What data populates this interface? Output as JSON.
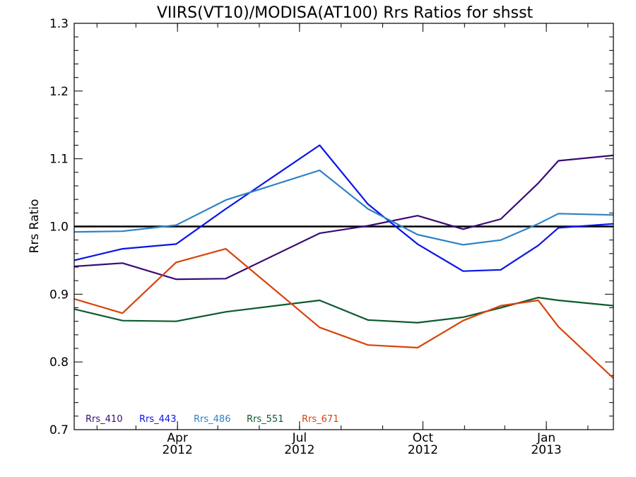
{
  "chart_data": {
    "type": "line",
    "title": "VIIRS(VT10)/MODISA(AT100)  Rrs Ratios for shsst",
    "xlabel": "",
    "ylabel": "Rrs Ratio",
    "xlim": [
      "2012-01-15",
      "2013-02-20"
    ],
    "ylim": [
      0.7,
      1.3
    ],
    "yticks": [
      "0.7",
      "0.8",
      "0.9",
      "1.0",
      "1.1",
      "1.2",
      "1.3"
    ],
    "xticks": [
      {
        "date": "2012-04-01",
        "month": "Apr",
        "year": "2012"
      },
      {
        "date": "2012-07-01",
        "month": "Jul",
        "year": "2012"
      },
      {
        "date": "2012-10-01",
        "month": "Oct",
        "year": "2012"
      },
      {
        "date": "2013-01-01",
        "month": "Jan",
        "year": "2013"
      }
    ],
    "reference_line": 1.0,
    "x": [
      "2012-01-15",
      "2012-02-20",
      "2012-03-31",
      "2012-05-07",
      "2012-07-16",
      "2012-08-21",
      "2012-09-27",
      "2012-10-31",
      "2012-11-28",
      "2012-12-26",
      "2013-01-10",
      "2013-02-20"
    ],
    "series": [
      {
        "name": "Rrs_410",
        "color": "#3b0a73",
        "values": [
          0.941,
          0.946,
          0.922,
          0.923,
          0.99,
          1.001,
          1.016,
          0.996,
          1.011,
          1.064,
          1.097,
          1.105
        ]
      },
      {
        "name": "Rrs_443",
        "color": "#0a14e8",
        "values": [
          0.95,
          0.967,
          0.974,
          1.026,
          1.12,
          1.033,
          0.974,
          0.934,
          0.936,
          0.972,
          0.998,
          1.004
        ]
      },
      {
        "name": "Rrs_486",
        "color": "#2e82c4",
        "values": [
          0.992,
          0.993,
          1.002,
          1.039,
          1.083,
          1.026,
          0.988,
          0.973,
          0.98,
          1.004,
          1.019,
          1.017
        ]
      },
      {
        "name": "Rrs_551",
        "color": "#0b5a2e",
        "values": [
          0.878,
          0.861,
          0.86,
          0.874,
          0.891,
          0.862,
          0.858,
          0.866,
          0.88,
          0.895,
          0.891,
          0.883
        ]
      },
      {
        "name": "Rrs_671",
        "color": "#d9420a",
        "values": [
          0.893,
          0.872,
          0.947,
          0.967,
          0.851,
          0.825,
          0.821,
          0.861,
          0.883,
          0.891,
          0.852,
          0.776
        ]
      }
    ],
    "grid": false,
    "legend_position": "bottom-left"
  }
}
